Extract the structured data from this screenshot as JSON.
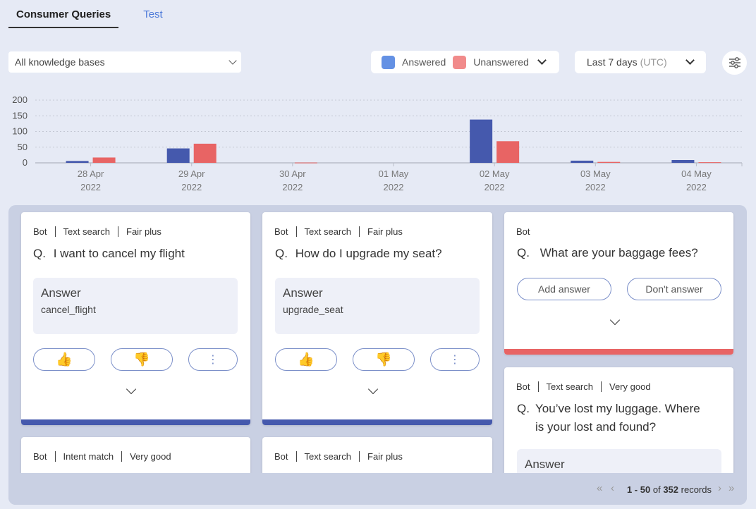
{
  "tabs": [
    {
      "label": "Consumer Queries",
      "active": true
    },
    {
      "label": "Test",
      "active": false
    }
  ],
  "knowledge_base_select": {
    "value": "All knowledge bases"
  },
  "legend": {
    "answered_label": "Answered",
    "unanswered_label": "Unanswered",
    "answered_color": "#4a5fb2",
    "unanswered_color": "#ec6a6a",
    "answered_swatch": "#6491e4",
    "unanswered_swatch": "#f18b8b"
  },
  "date_range": {
    "value": "Last 7 days",
    "tz": "(UTC)"
  },
  "chart_data": {
    "type": "bar",
    "categories": [
      "28 Apr 2022",
      "29 Apr 2022",
      "30 Apr 2022",
      "01 May 2022",
      "02 May 2022",
      "03 May 2022",
      "04 May 2022"
    ],
    "category_lines": [
      [
        "28 Apr",
        "2022"
      ],
      [
        "29 Apr",
        "2022"
      ],
      [
        "30 Apr",
        "2022"
      ],
      [
        "01 May",
        "2022"
      ],
      [
        "02 May",
        "2022"
      ],
      [
        "03 May",
        "2022"
      ],
      [
        "04 May",
        "2022"
      ]
    ],
    "series": [
      {
        "name": "Answered",
        "values": [
          6,
          46,
          0,
          0,
          138,
          7,
          9
        ]
      },
      {
        "name": "Unanswered",
        "values": [
          17,
          61,
          1,
          0,
          69,
          3,
          2
        ]
      }
    ],
    "yticks": [
      0,
      50,
      100,
      150,
      200
    ],
    "ylim": [
      0,
      200
    ],
    "grid": true,
    "legend": "top-right"
  },
  "cards": [
    {
      "tags": [
        "Bot",
        "Text search",
        "Fair plus"
      ],
      "q_prefix": "Q.",
      "question": "I want to cancel my flight",
      "answer_title": "Answer",
      "answer_value": "cancel_flight"
    },
    {
      "tags": [
        "Bot",
        "Text search",
        "Fair plus"
      ],
      "q_prefix": "Q.",
      "question": "How do I upgrade my seat?",
      "answer_title": "Answer",
      "answer_value": "upgrade_seat"
    },
    {
      "tags": [
        "Bot"
      ],
      "q_prefix": "Q.",
      "question": "What are your baggage fees?",
      "add_answer": "Add answer",
      "dont_answer": "Don't answer"
    },
    {
      "tags": [
        "Bot",
        "Text search",
        "Very good"
      ],
      "q_prefix": "Q.",
      "question_line1": "You’ve lost my luggage. Where",
      "question_line2": "is your lost and found?",
      "answer_title": "Answer"
    },
    {
      "tags": [
        "Bot",
        "Intent match",
        "Very good"
      ]
    },
    {
      "tags": [
        "Bot",
        "Text search",
        "Fair plus"
      ]
    }
  ],
  "status_colors": {
    "answered_bar": "#4559ad",
    "unanswered_bar": "#e86464"
  },
  "pager": {
    "range": "1 - 50",
    "of": "of",
    "total": "352",
    "unit": "records"
  }
}
